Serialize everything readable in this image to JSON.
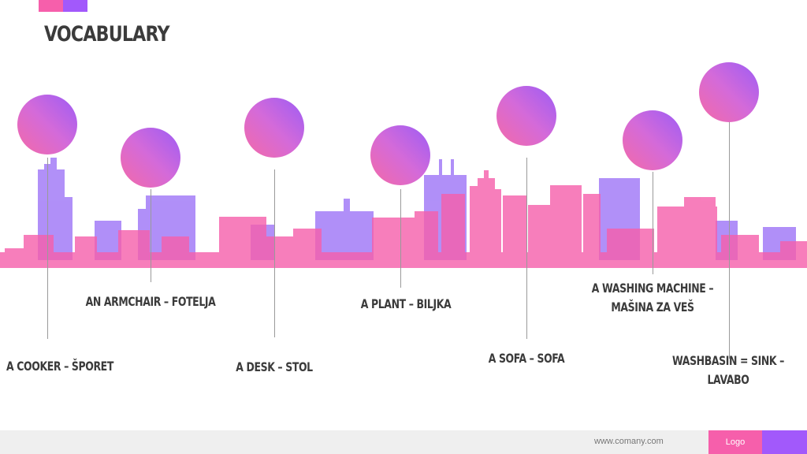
{
  "slide": {
    "title": "VOCABULARY",
    "colors": {
      "pink": "#f65fab",
      "purple": "#a259fb",
      "text": "#3b3b3b"
    }
  },
  "items": [
    {
      "label_lines": [
        "A COOKER – ŠPORET"
      ]
    },
    {
      "label_lines": [
        "AN ARMCHAIR – FOTELJA"
      ]
    },
    {
      "label_lines": [
        "A DESK – STOL"
      ]
    },
    {
      "label_lines": [
        "A PLANT – BILJKA"
      ]
    },
    {
      "label_lines": [
        "A SOFA – SOFA"
      ]
    },
    {
      "label_lines": [
        "A WASHING MACHINE –",
        "MAŠINA ZA VEŠ"
      ]
    },
    {
      "label_lines": [
        "WASHBASIN = SINK –",
        "LAVABO"
      ]
    }
  ],
  "footer": {
    "url": "www.comany.com",
    "logo": "Logo"
  }
}
